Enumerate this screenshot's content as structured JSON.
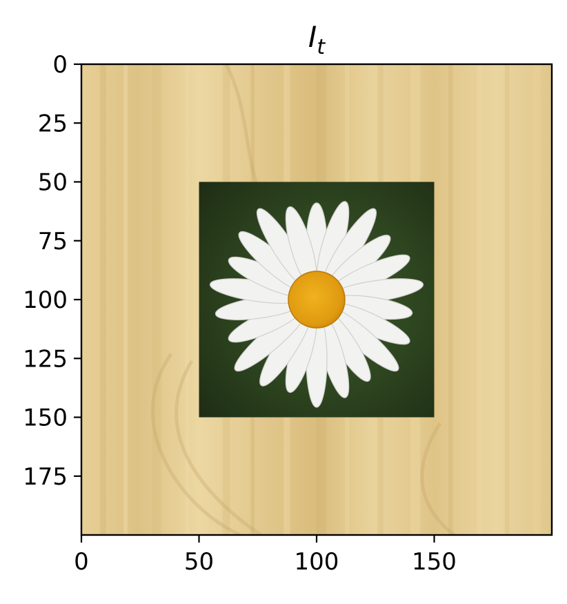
{
  "chart_data": {
    "type": "image",
    "title": {
      "main": "I",
      "subscript": "t"
    },
    "xlim": [
      0,
      200
    ],
    "ylim": [
      200,
      0
    ],
    "x_ticks": [
      0,
      50,
      100,
      150
    ],
    "y_ticks": [
      0,
      25,
      50,
      75,
      100,
      125,
      150,
      175
    ],
    "grid": false,
    "image": {
      "background": "wood-texture",
      "inset": {
        "content": "daisy-flower-photo",
        "x_range": [
          50,
          150
        ],
        "y_range": [
          50,
          150
        ]
      }
    },
    "colors": {
      "wood_light": "#e8d29a",
      "wood_mid": "#dcc080",
      "wood_dark": "#c8a868",
      "inset_bg_dark": "#223318",
      "inset_bg_light": "#5e7a42",
      "petal": "#f2f2f0",
      "flower_center": "#e8a515"
    }
  }
}
